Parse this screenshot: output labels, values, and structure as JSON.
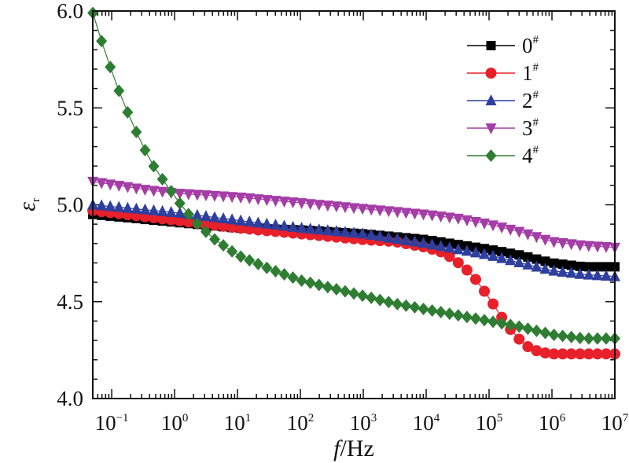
{
  "chart_data": {
    "type": "line",
    "xscale": "log",
    "xlim": [
      0.05,
      10000000
    ],
    "ylim": [
      4.0,
      6.0
    ],
    "xlabel_italic": "f",
    "xlabel_unit": "/Hz",
    "ylabel_symbol": "ε",
    "ylabel_sub": "r",
    "x_tick_labels": [
      {
        "base": "10",
        "exp": "−1",
        "value": 0.1
      },
      {
        "base": "10",
        "exp": "0",
        "value": 1
      },
      {
        "base": "10",
        "exp": "1",
        "value": 10
      },
      {
        "base": "10",
        "exp": "2",
        "value": 100
      },
      {
        "base": "10",
        "exp": "3",
        "value": 1000
      },
      {
        "base": "10",
        "exp": "4",
        "value": 10000
      },
      {
        "base": "10",
        "exp": "5",
        "value": 100000
      },
      {
        "base": "10",
        "exp": "6",
        "value": 1000000
      },
      {
        "base": "10",
        "exp": "7",
        "value": 10000000
      }
    ],
    "y_tick_labels": [
      "4.0",
      "4.5",
      "5.0",
      "5.5",
      "6.0"
    ],
    "y_tick_values": [
      4.0,
      4.5,
      5.0,
      5.5,
      6.0
    ],
    "legend_position": "top-right",
    "series": [
      {
        "name": "0",
        "name_sup": "#",
        "color": "#000000",
        "marker": "square",
        "log_x": [
          -1.3,
          0,
          1,
          2,
          3,
          4,
          5,
          5.5,
          6,
          6.5,
          7
        ],
        "y": [
          4.95,
          4.91,
          4.88,
          4.87,
          4.85,
          4.82,
          4.77,
          4.74,
          4.7,
          4.68,
          4.68
        ]
      },
      {
        "name": "1",
        "name_sup": "#",
        "color": "#e8202a",
        "marker": "circle",
        "log_x": [
          -1.3,
          0,
          1,
          2,
          3,
          3.5,
          4,
          4.3,
          4.6,
          4.8,
          5,
          5.2,
          5.4,
          5.6,
          5.8,
          6,
          6.3,
          6.6,
          7
        ],
        "y": [
          4.97,
          4.92,
          4.88,
          4.85,
          4.82,
          4.81,
          4.78,
          4.75,
          4.68,
          4.61,
          4.52,
          4.42,
          4.33,
          4.27,
          4.24,
          4.23,
          4.23,
          4.23,
          4.23
        ]
      },
      {
        "name": "2",
        "name_sup": "#",
        "color": "#2e3f9e",
        "marker": "triangle-up",
        "log_x": [
          -1.3,
          0,
          1,
          2,
          3,
          4,
          5,
          5.5,
          6,
          6.5,
          7
        ],
        "y": [
          5.0,
          4.96,
          4.92,
          4.88,
          4.85,
          4.8,
          4.74,
          4.7,
          4.66,
          4.64,
          4.63
        ]
      },
      {
        "name": "3",
        "name_sup": "#",
        "color": "#a43ea6",
        "marker": "triangle-down",
        "log_x": [
          -1.3,
          -0.5,
          0,
          1,
          2,
          3,
          4,
          4.5,
          5,
          5.5,
          6,
          6.5,
          7
        ],
        "y": [
          5.12,
          5.08,
          5.06,
          5.04,
          5.01,
          4.98,
          4.95,
          4.93,
          4.9,
          4.86,
          4.81,
          4.79,
          4.78
        ]
      },
      {
        "name": "4",
        "name_sup": "#",
        "color": "#2e7d32",
        "marker": "diamond",
        "log_x": [
          -1.3,
          -1.1,
          -0.9,
          -0.7,
          -0.5,
          -0.3,
          -0.1,
          0.1,
          0.3,
          0.6,
          1,
          1.5,
          2,
          2.5,
          3,
          3.5,
          4,
          4.5,
          5,
          5.5,
          6,
          6.5,
          7
        ],
        "y": [
          5.99,
          5.78,
          5.6,
          5.44,
          5.3,
          5.18,
          5.09,
          5.0,
          4.92,
          4.83,
          4.74,
          4.67,
          4.61,
          4.57,
          4.53,
          4.49,
          4.46,
          4.43,
          4.4,
          4.37,
          4.33,
          4.31,
          4.31
        ]
      }
    ]
  }
}
